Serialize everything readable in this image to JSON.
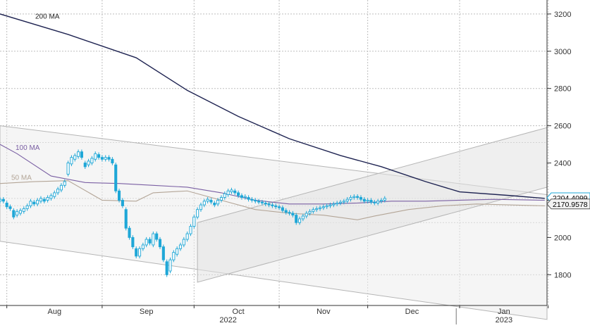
{
  "chart_data": {
    "type": "candlestick",
    "y_ticks": [
      1800,
      2000,
      2200,
      2400,
      2600,
      2800,
      3000,
      3200
    ],
    "ylim": [
      1635,
      3275
    ],
    "xlim": [
      0,
      160
    ],
    "month_labels": [
      {
        "label": "Aug",
        "pos": 16
      },
      {
        "label": "Sep",
        "pos": 43
      },
      {
        "label": "Oct",
        "pos": 70
      },
      {
        "label": "Nov",
        "pos": 95
      },
      {
        "label": "Dec",
        "pos": 121
      },
      {
        "label": "Jan",
        "pos": 148
      }
    ],
    "month_gridlines": [
      2,
      30,
      57,
      82,
      108,
      135,
      161
    ],
    "year_labels": [
      {
        "label": "2022",
        "pos": 67
      },
      {
        "label": "2023",
        "pos": 148
      }
    ],
    "year_divider": 134,
    "h_gridlines": [
      1800,
      2080,
      2170,
      2210,
      2510,
      2600,
      2800,
      3000,
      3200
    ],
    "last_price": "2204.4099",
    "ma_value": "2170.9578",
    "accent_color": "#1ea7d7",
    "series": [
      {
        "name": "200 MA",
        "color": "#1f2452",
        "points": [
          [
            0,
            3200
          ],
          [
            20,
            3090
          ],
          [
            40,
            2965
          ],
          [
            55,
            2790
          ],
          [
            70,
            2650
          ],
          [
            85,
            2530
          ],
          [
            100,
            2440
          ],
          [
            112,
            2380
          ],
          [
            125,
            2300
          ],
          [
            135,
            2245
          ],
          [
            150,
            2225
          ],
          [
            160,
            2210
          ]
        ]
      },
      {
        "name": "100 MA",
        "color": "#7a5fa3",
        "points": [
          [
            0,
            2500
          ],
          [
            5,
            2450
          ],
          [
            15,
            2330
          ],
          [
            25,
            2295
          ],
          [
            35,
            2290
          ],
          [
            45,
            2280
          ],
          [
            55,
            2270
          ],
          [
            65,
            2240
          ],
          [
            75,
            2200
          ],
          [
            85,
            2180
          ],
          [
            95,
            2180
          ],
          [
            105,
            2185
          ],
          [
            115,
            2195
          ],
          [
            125,
            2195
          ],
          [
            135,
            2200
          ],
          [
            145,
            2205
          ],
          [
            160,
            2200
          ]
        ]
      },
      {
        "name": "50 MA",
        "color": "#b3a597",
        "points": [
          [
            0,
            2290
          ],
          [
            10,
            2300
          ],
          [
            20,
            2305
          ],
          [
            30,
            2200
          ],
          [
            40,
            2195
          ],
          [
            45,
            2240
          ],
          [
            55,
            2250
          ],
          [
            65,
            2200
          ],
          [
            75,
            2150
          ],
          [
            85,
            2130
          ],
          [
            95,
            2120
          ],
          [
            105,
            2095
          ],
          [
            110,
            2115
          ],
          [
            120,
            2150
          ],
          [
            130,
            2170
          ],
          [
            140,
            2180
          ],
          [
            160,
            2170
          ]
        ]
      }
    ],
    "candles": [
      [
        0,
        2195,
        2205
      ],
      [
        1,
        2205,
        2195
      ],
      [
        2,
        2185,
        2165
      ],
      [
        3,
        2165,
        2155
      ],
      [
        4,
        2145,
        2110
      ],
      [
        5,
        2120,
        2140
      ],
      [
        6,
        2130,
        2145
      ],
      [
        7,
        2140,
        2155
      ],
      [
        8,
        2155,
        2170
      ],
      [
        9,
        2170,
        2195
      ],
      [
        10,
        2190,
        2180
      ],
      [
        11,
        2180,
        2200
      ],
      [
        12,
        2195,
        2210
      ],
      [
        13,
        2205,
        2195
      ],
      [
        14,
        2200,
        2215
      ],
      [
        15,
        2210,
        2225
      ],
      [
        16,
        2220,
        2240
      ],
      [
        17,
        2240,
        2260
      ],
      [
        18,
        2255,
        2280
      ],
      [
        19,
        2280,
        2300
      ],
      [
        20,
        2340,
        2400
      ],
      [
        21,
        2395,
        2430
      ],
      [
        22,
        2420,
        2440
      ],
      [
        23,
        2435,
        2460
      ],
      [
        24,
        2460,
        2430
      ],
      [
        25,
        2400,
        2380
      ],
      [
        26,
        2390,
        2410
      ],
      [
        27,
        2400,
        2425
      ],
      [
        28,
        2420,
        2450
      ],
      [
        29,
        2445,
        2430
      ],
      [
        30,
        2430,
        2420
      ],
      [
        31,
        2420,
        2430
      ],
      [
        32,
        2430,
        2420
      ],
      [
        33,
        2420,
        2400
      ],
      [
        34,
        2390,
        2250
      ],
      [
        35,
        2250,
        2200
      ],
      [
        36,
        2200,
        2170
      ],
      [
        37,
        2150,
        2050
      ],
      [
        38,
        2050,
        2000
      ],
      [
        39,
        2000,
        1950
      ],
      [
        40,
        1940,
        1900
      ],
      [
        41,
        1900,
        1940
      ],
      [
        42,
        1940,
        1960
      ],
      [
        43,
        1960,
        1990
      ],
      [
        44,
        1990,
        1970
      ],
      [
        45,
        1960,
        2020
      ],
      [
        46,
        2020,
        1990
      ],
      [
        47,
        1990,
        1950
      ],
      [
        48,
        1950,
        1880
      ],
      [
        49,
        1870,
        1800
      ],
      [
        50,
        1820,
        1880
      ],
      [
        51,
        1880,
        1920
      ],
      [
        52,
        1910,
        1940
      ],
      [
        53,
        1940,
        1960
      ],
      [
        54,
        1960,
        1990
      ],
      [
        55,
        1990,
        2020
      ],
      [
        56,
        2020,
        2060
      ],
      [
        57,
        2060,
        2110
      ],
      [
        58,
        2110,
        2150
      ],
      [
        59,
        2150,
        2175
      ],
      [
        60,
        2175,
        2195
      ],
      [
        61,
        2195,
        2205
      ],
      [
        62,
        2200,
        2190
      ],
      [
        63,
        2185,
        2175
      ],
      [
        64,
        2180,
        2200
      ],
      [
        65,
        2200,
        2215
      ],
      [
        66,
        2215,
        2235
      ],
      [
        67,
        2230,
        2250
      ],
      [
        68,
        2245,
        2255
      ],
      [
        69,
        2250,
        2240
      ],
      [
        70,
        2240,
        2225
      ],
      [
        71,
        2225,
        2215
      ],
      [
        72,
        2215,
        2220
      ],
      [
        73,
        2215,
        2205
      ],
      [
        74,
        2205,
        2200
      ],
      [
        75,
        2200,
        2195
      ],
      [
        76,
        2195,
        2190
      ],
      [
        77,
        2190,
        2185
      ],
      [
        78,
        2185,
        2180
      ],
      [
        79,
        2180,
        2175
      ],
      [
        80,
        2175,
        2170
      ],
      [
        81,
        2170,
        2165
      ],
      [
        82,
        2165,
        2160
      ],
      [
        83,
        2160,
        2145
      ],
      [
        84,
        2145,
        2135
      ],
      [
        85,
        2135,
        2130
      ],
      [
        86,
        2130,
        2120
      ],
      [
        87,
        2120,
        2080
      ],
      [
        88,
        2080,
        2100
      ],
      [
        89,
        2100,
        2115
      ],
      [
        90,
        2115,
        2130
      ],
      [
        91,
        2130,
        2140
      ],
      [
        92,
        2140,
        2150
      ],
      [
        93,
        2150,
        2155
      ],
      [
        94,
        2155,
        2160
      ],
      [
        95,
        2160,
        2165
      ],
      [
        96,
        2165,
        2170
      ],
      [
        97,
        2170,
        2175
      ],
      [
        98,
        2175,
        2180
      ],
      [
        99,
        2180,
        2185
      ],
      [
        100,
        2185,
        2190
      ],
      [
        101,
        2190,
        2195
      ],
      [
        102,
        2195,
        2205
      ],
      [
        103,
        2205,
        2215
      ],
      [
        104,
        2215,
        2220
      ],
      [
        105,
        2220,
        2215
      ],
      [
        106,
        2215,
        2205
      ],
      [
        107,
        2205,
        2195
      ],
      [
        108,
        2195,
        2200
      ],
      [
        109,
        2200,
        2190
      ],
      [
        110,
        2190,
        2185
      ],
      [
        111,
        2185,
        2195
      ],
      [
        112,
        2195,
        2200
      ],
      [
        113,
        2200,
        2210
      ]
    ]
  }
}
